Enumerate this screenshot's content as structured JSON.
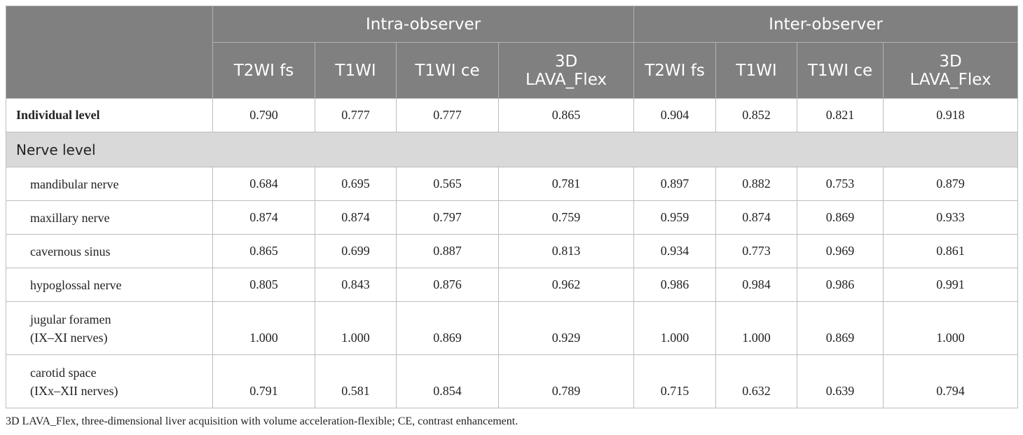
{
  "header": {
    "groups": [
      "Intra-observer",
      "Inter-observer"
    ],
    "columns": [
      "T2WI fs",
      "T1WI",
      "T1WI ce",
      "3D\nLAVA_Flex",
      "T2WI fs",
      "T1WI",
      "T1WI ce",
      "3D\nLAVA_Flex"
    ]
  },
  "individual": {
    "label": "Individual level",
    "values": [
      "0.790",
      "0.777",
      "0.777",
      "0.865",
      "0.904",
      "0.852",
      "0.821",
      "0.918"
    ]
  },
  "section": {
    "label": "Nerve level"
  },
  "rows": [
    {
      "label": "mandibular nerve",
      "values": [
        "0.684",
        "0.695",
        "0.565",
        "0.781",
        "0.897",
        "0.882",
        "0.753",
        "0.879"
      ]
    },
    {
      "label": "maxillary nerve",
      "values": [
        "0.874",
        "0.874",
        "0.797",
        "0.759",
        "0.959",
        "0.874",
        "0.869",
        "0.933"
      ]
    },
    {
      "label": "cavernous sinus",
      "values": [
        "0.865",
        "0.699",
        "0.887",
        "0.813",
        "0.934",
        "0.773",
        "0.969",
        "0.861"
      ]
    },
    {
      "label": "hypoglossal nerve",
      "values": [
        "0.805",
        "0.843",
        "0.876",
        "0.962",
        "0.986",
        "0.984",
        "0.986",
        "0.991"
      ]
    },
    {
      "label": "jugular foramen",
      "label2": "(IX–XI nerves)",
      "values": [
        "1.000",
        "1.000",
        "0.869",
        "0.929",
        "1.000",
        "1.000",
        "0.869",
        "1.000"
      ]
    },
    {
      "label": "carotid space",
      "label2": "(IXx–XII nerves)",
      "values": [
        "0.791",
        "0.581",
        "0.854",
        "0.789",
        "0.715",
        "0.632",
        "0.639",
        "0.794"
      ]
    }
  ],
  "footnote": "3D LAVA_Flex, three-dimensional liver acquisition with volume acceleration-flexible; CE, contrast enhancement."
}
